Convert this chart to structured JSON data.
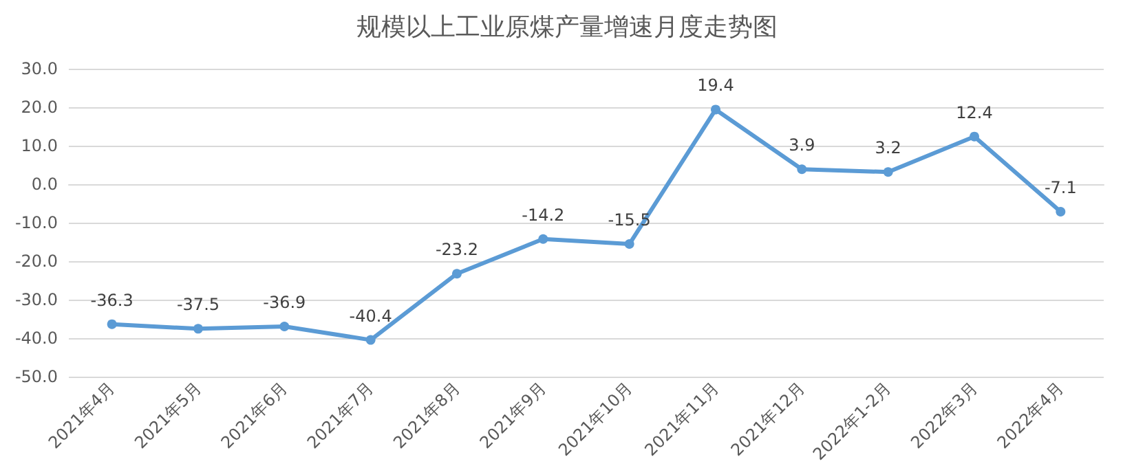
{
  "chart_data": {
    "type": "line",
    "title": "规模以上工业原煤产量增速月度走势图",
    "categories": [
      "2021年4月",
      "2021年5月",
      "2021年6月",
      "2021年7月",
      "2021年8月",
      "2021年9月",
      "2021年10月",
      "2021年11月",
      "2021年12月",
      "2022年1-2月",
      "2022年3月",
      "2022年4月"
    ],
    "series": [
      {
        "color": "#5b9bd5",
        "values": [
          -36.3,
          -37.5,
          -36.9,
          -40.4,
          -23.2,
          -14.2,
          -15.5,
          19.4,
          3.9,
          3.2,
          12.4,
          -7.1
        ]
      }
    ],
    "ylim": [
      -50,
      30
    ],
    "yticks": [
      {
        "value": -50,
        "label": "-50.0"
      },
      {
        "value": -40,
        "label": "-40.0"
      },
      {
        "value": -30,
        "label": "-30.0"
      },
      {
        "value": -20,
        "label": "-20.0"
      },
      {
        "value": -10,
        "label": "-10.0"
      },
      {
        "value": 0,
        "label": "0.0"
      },
      {
        "value": 10,
        "label": "10.0"
      },
      {
        "value": 20,
        "label": "20.0"
      },
      {
        "value": 30,
        "label": "30.0"
      }
    ],
    "grid": "y",
    "marker": "circle",
    "line_style": "solid",
    "data_labels": true
  }
}
